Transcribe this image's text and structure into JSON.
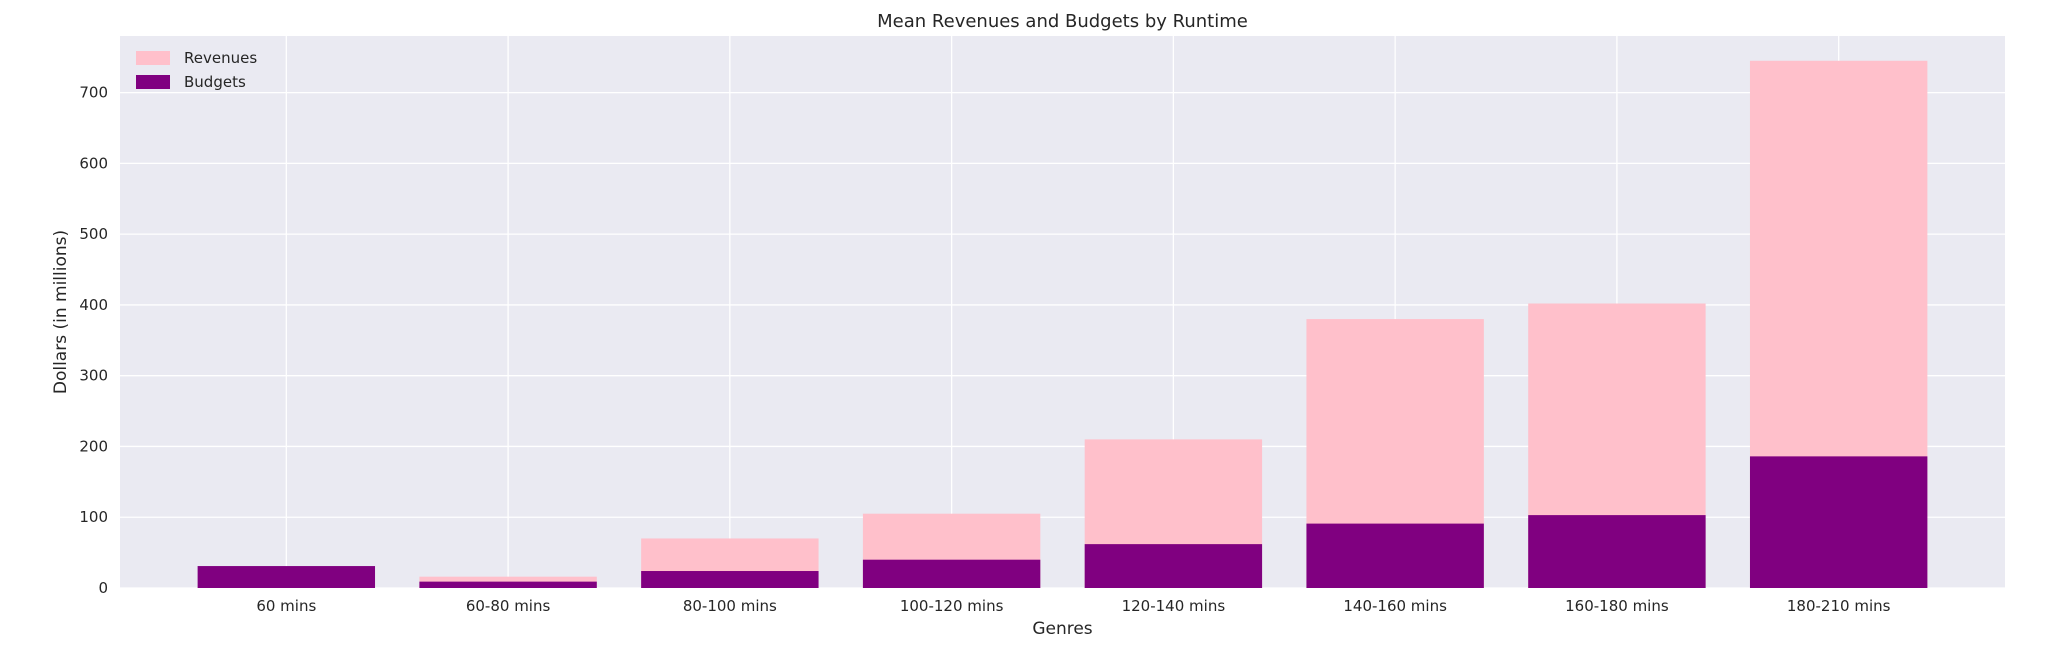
{
  "chart_data": {
    "type": "bar",
    "stacked": false,
    "title": "Mean Revenues and Budgets by Runtime",
    "xlabel": "Genres",
    "ylabel": "Dollars (in millions)",
    "categories": [
      "60 mins",
      "60-80 mins",
      "80-100 mins",
      "100-120 mins",
      "120-140 mins",
      "140-160 mins",
      "160-180 mins",
      "180-210 mins"
    ],
    "series": [
      {
        "name": "Revenues",
        "color": "#ffc0cb",
        "values": [
          0,
          16,
          70,
          105,
          210,
          380,
          402,
          745
        ]
      },
      {
        "name": "Budgets",
        "color": "#800080",
        "values": [
          31,
          9,
          24,
          40,
          62,
          91,
          103,
          186
        ]
      }
    ],
    "ylim": [
      0,
      780
    ],
    "yticks": [
      0,
      100,
      200,
      300,
      400,
      500,
      600,
      700
    ],
    "ytick_labels": [
      "0",
      "100",
      "200",
      "300",
      "400",
      "500",
      "600",
      "700"
    ],
    "grid": true,
    "background": "#eaeaf2",
    "legend_position": "top-left"
  }
}
